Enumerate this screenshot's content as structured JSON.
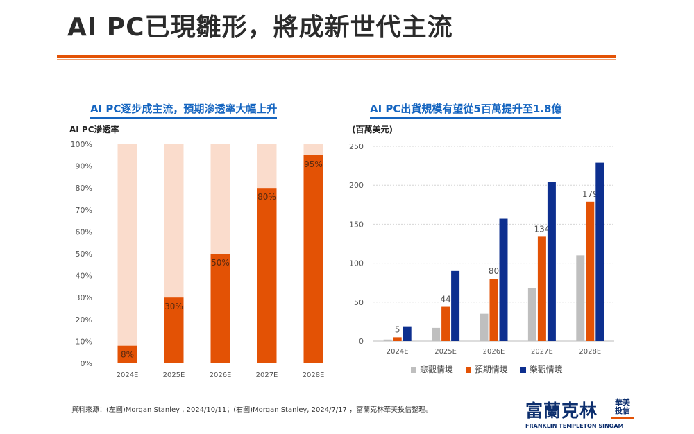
{
  "page": {
    "title": "AI PC已現雛形，將成新世代主流",
    "source": "資料來源：(左圖)Morgan Stanley , 2024/10/11；(右圖)Morgan Stanley, 2024/7/17 ，富蘭克林華美投信整理。",
    "logo": {
      "main": "富蘭克林",
      "side_top": "華美",
      "side_bottom": "投信",
      "english": "FRANKLIN TEMPLETON SINOAM"
    }
  },
  "colors": {
    "accent": "#e35205",
    "light": "#fadccc",
    "blue": "#0d2f8f",
    "gray": "#bfbfbf",
    "title_blue": "#1565c0"
  },
  "chart_data": [
    {
      "type": "bar",
      "title": "AI PC逐步成主流，預期滲透率大幅上升",
      "ylabel": "AI PC滲透率",
      "categories": [
        "2024E",
        "2025E",
        "2026E",
        "2027E",
        "2028E"
      ],
      "values": [
        8,
        30,
        50,
        80,
        95
      ],
      "value_labels": [
        "8%",
        "30%",
        "50%",
        "80%",
        "95%"
      ],
      "ylim": [
        0,
        100
      ],
      "yticks": [
        "0%",
        "10%",
        "20%",
        "30%",
        "40%",
        "50%",
        "60%",
        "70%",
        "80%",
        "90%",
        "100%"
      ],
      "background_total": 100,
      "grid": false
    },
    {
      "type": "bar",
      "title": "AI PC出貨規模有望從5百萬提升至1.8億",
      "ylabel": "(百萬美元)",
      "categories": [
        "2024E",
        "2025E",
        "2026E",
        "2027E",
        "2028E"
      ],
      "ylim": [
        0,
        250
      ],
      "yticks": [
        "0",
        "50",
        "100",
        "150",
        "200",
        "250"
      ],
      "grid": true,
      "legend_position": "bottom",
      "series": [
        {
          "name": "悲觀情境",
          "values": [
            2,
            17,
            35,
            68,
            110
          ]
        },
        {
          "name": "預期情境",
          "values": [
            5,
            44,
            80,
            134,
            179
          ]
        },
        {
          "name": "樂觀情境",
          "values": [
            19,
            90,
            157,
            204,
            229
          ]
        }
      ],
      "data_labels": [
        "5",
        "44",
        "80",
        "134",
        "179"
      ]
    }
  ]
}
